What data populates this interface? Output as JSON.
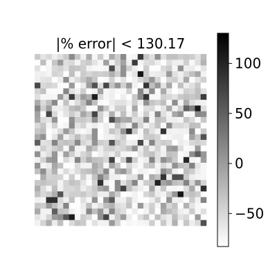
{
  "chart_data": {
    "type": "heatmap",
    "title": "|% error| < 130.17",
    "rows": 30,
    "cols": 30,
    "colormap": "gray_r",
    "vmin": -83,
    "vmax": 130.17,
    "colorbar": {
      "ticks": [
        100,
        50,
        0,
        -50
      ],
      "tick_labels": [
        "100",
        "50",
        "0",
        "−50"
      ]
    },
    "cell_values_note_omitted": true
  }
}
